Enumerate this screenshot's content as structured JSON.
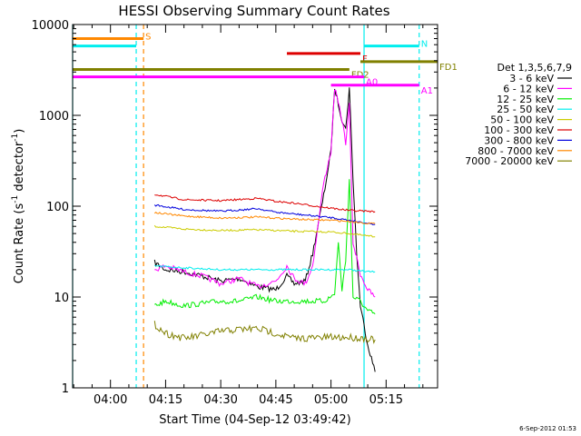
{
  "chart_data": {
    "type": "line",
    "title": "HESSI Observing Summary Count Rates",
    "xlabel": "Start Time (04-Sep-12 03:49:42)",
    "ylabel": "Count Rate (s⁻¹ detector⁻¹)",
    "ylabel_main": "Count Rate (s",
    "ylabel_mid": " detector",
    "ylabel_end": ")",
    "ylabel_sup": "-1",
    "yscale": "log",
    "ylim": [
      1,
      10000
    ],
    "xlim": [
      "03:49:42",
      "05:29:00"
    ],
    "x_tick_labels": [
      "04:00",
      "04:15",
      "04:30",
      "04:45",
      "05:00",
      "05:15"
    ],
    "y_tick_labels": [
      "1",
      "10",
      "100",
      "1000",
      "10000"
    ],
    "legend_title": "Det 1,3,5,6,7,9",
    "legend_position": "right",
    "series": [
      {
        "name": "3 - 6 keV",
        "color": "#000000",
        "points": [
          [
            "04:12",
            24
          ],
          [
            "04:15",
            20
          ],
          [
            "04:20",
            19
          ],
          [
            "04:25",
            17
          ],
          [
            "04:30",
            15
          ],
          [
            "04:35",
            16
          ],
          [
            "04:40",
            13
          ],
          [
            "04:45",
            12
          ],
          [
            "04:48",
            17
          ],
          [
            "04:50",
            14
          ],
          [
            "04:53",
            15
          ],
          [
            "04:55",
            30
          ],
          [
            "04:58",
            130
          ],
          [
            "05:00",
            400
          ],
          [
            "05:01",
            2000
          ],
          [
            "05:03",
            900
          ],
          [
            "05:04",
            700
          ],
          [
            "05:05",
            2000
          ],
          [
            "05:06",
            200
          ],
          [
            "05:07",
            30
          ],
          [
            "05:08",
            8
          ],
          [
            "05:10",
            3
          ],
          [
            "05:12",
            1.5
          ]
        ]
      },
      {
        "name": "6 - 12 keV",
        "color": "#ff00ff",
        "points": [
          [
            "04:12",
            20
          ],
          [
            "04:15",
            22
          ],
          [
            "04:20",
            19
          ],
          [
            "04:25",
            17
          ],
          [
            "04:30",
            14
          ],
          [
            "04:35",
            16
          ],
          [
            "04:40",
            13
          ],
          [
            "04:45",
            15
          ],
          [
            "04:48",
            22
          ],
          [
            "04:50",
            16
          ],
          [
            "04:53",
            14
          ],
          [
            "04:55",
            22
          ],
          [
            "04:58",
            180
          ],
          [
            "05:00",
            400
          ],
          [
            "05:01",
            2000
          ],
          [
            "05:03",
            900
          ],
          [
            "05:04",
            500
          ],
          [
            "05:05",
            1300
          ],
          [
            "05:06",
            40
          ],
          [
            "05:08",
            18
          ],
          [
            "05:10",
            12
          ],
          [
            "05:12",
            10
          ]
        ]
      },
      {
        "name": "12 - 25 keV",
        "color": "#00ee00",
        "points": [
          [
            "04:12",
            8
          ],
          [
            "04:15",
            9
          ],
          [
            "04:20",
            8
          ],
          [
            "04:25",
            8.5
          ],
          [
            "04:30",
            9
          ],
          [
            "04:35",
            9
          ],
          [
            "04:40",
            10
          ],
          [
            "04:45",
            9
          ],
          [
            "04:50",
            9
          ],
          [
            "04:55",
            9
          ],
          [
            "04:58",
            9
          ],
          [
            "05:00",
            10
          ],
          [
            "05:01",
            11
          ],
          [
            "05:02",
            40
          ],
          [
            "05:03",
            12
          ],
          [
            "05:04",
            25
          ],
          [
            "05:05",
            200
          ],
          [
            "05:06",
            10
          ],
          [
            "05:08",
            9
          ],
          [
            "05:10",
            7
          ],
          [
            "05:12",
            6.5
          ]
        ]
      },
      {
        "name": "25 - 50 keV",
        "color": "#00eeee",
        "points": [
          [
            "04:12",
            22
          ],
          [
            "04:20",
            21
          ],
          [
            "04:30",
            20
          ],
          [
            "04:40",
            20
          ],
          [
            "04:50",
            20
          ],
          [
            "05:00",
            20
          ],
          [
            "05:05",
            20
          ],
          [
            "05:10",
            19
          ],
          [
            "05:12",
            19
          ]
        ]
      },
      {
        "name": "50 - 100 keV",
        "color": "#cccc00",
        "points": [
          [
            "04:12",
            60
          ],
          [
            "04:20",
            56
          ],
          [
            "04:30",
            54
          ],
          [
            "04:40",
            55
          ],
          [
            "04:50",
            53
          ],
          [
            "05:00",
            52
          ],
          [
            "05:05",
            50
          ],
          [
            "05:10",
            47
          ],
          [
            "05:12",
            46
          ]
        ]
      },
      {
        "name": "100 - 300 keV",
        "color": "#dd0000",
        "points": [
          [
            "04:12",
            135
          ],
          [
            "04:20",
            118
          ],
          [
            "04:30",
            115
          ],
          [
            "04:40",
            122
          ],
          [
            "04:45",
            113
          ],
          [
            "04:50",
            108
          ],
          [
            "05:00",
            95
          ],
          [
            "05:05",
            90
          ],
          [
            "05:10",
            88
          ],
          [
            "05:12",
            87
          ]
        ]
      },
      {
        "name": "300 - 800 keV",
        "color": "#0000dd",
        "points": [
          [
            "04:12",
            103
          ],
          [
            "04:20",
            92
          ],
          [
            "04:30",
            88
          ],
          [
            "04:40",
            94
          ],
          [
            "04:45",
            86
          ],
          [
            "04:50",
            82
          ],
          [
            "05:00",
            75
          ],
          [
            "05:05",
            70
          ],
          [
            "05:10",
            65
          ],
          [
            "05:12",
            63
          ]
        ]
      },
      {
        "name": "800 - 7000 keV",
        "color": "#ff8800",
        "points": [
          [
            "04:12",
            85
          ],
          [
            "04:20",
            78
          ],
          [
            "04:30",
            74
          ],
          [
            "04:40",
            76
          ],
          [
            "04:50",
            72
          ],
          [
            "05:00",
            70
          ],
          [
            "05:05",
            68
          ],
          [
            "05:10",
            65
          ],
          [
            "05:12",
            64
          ]
        ]
      },
      {
        "name": "7000 - 20000 keV",
        "color": "#808000",
        "points": [
          [
            "04:12",
            5
          ],
          [
            "04:15",
            4
          ],
          [
            "04:20",
            3.5
          ],
          [
            "04:25",
            3.8
          ],
          [
            "04:30",
            4.2
          ],
          [
            "04:35",
            4.4
          ],
          [
            "04:40",
            4.5
          ],
          [
            "04:45",
            4
          ],
          [
            "04:50",
            3.5
          ],
          [
            "05:00",
            3.6
          ],
          [
            "05:05",
            3.6
          ],
          [
            "05:10",
            3.5
          ],
          [
            "05:12",
            3.4
          ]
        ]
      }
    ],
    "annotations": [
      {
        "text": "S",
        "color": "#ff8800"
      },
      {
        "text": "N",
        "color": "#00eeee"
      },
      {
        "text": "F",
        "color": "#dd0000"
      },
      {
        "text": "FD1",
        "color": "#808000"
      },
      {
        "text": "FD2",
        "color": "#808000"
      },
      {
        "text": "A0",
        "color": "#ff00ff"
      },
      {
        "text": "A1",
        "color": "#ff00ff"
      }
    ],
    "flag_bars": [
      {
        "label": "S",
        "color": "#ff8800",
        "value": 7000,
        "segments": [
          [
            "03:49:42",
            "04:09"
          ]
        ]
      },
      {
        "label": "N",
        "color": "#00eeee",
        "value": 5800,
        "segments": [
          [
            "03:49:42",
            "04:07"
          ],
          [
            "05:09",
            "05:24"
          ]
        ]
      },
      {
        "label": "F",
        "color": "#dd0000",
        "value": 4800,
        "segments": [
          [
            "04:48",
            "05:08"
          ]
        ]
      },
      {
        "label": "FD1",
        "color": "#808000",
        "value": 3900,
        "segments": [
          [
            "05:08",
            "05:29"
          ]
        ]
      },
      {
        "label": "FD2",
        "color": "#808000",
        "value": 3200,
        "segments": [
          [
            "03:49:42",
            "05:05"
          ]
        ]
      },
      {
        "label": "A0",
        "color": "#ff00ff",
        "value": 2650,
        "segments": [
          [
            "03:49:42",
            "05:09"
          ]
        ]
      },
      {
        "label": "A1",
        "color": "#ff00ff",
        "value": 2150,
        "segments": [
          [
            "05:00",
            "05:24"
          ]
        ]
      }
    ],
    "vertical_markers": [
      {
        "time": "03:49:42",
        "color": "#00eeee",
        "style": "solid"
      },
      {
        "time": "04:07",
        "color": "#00eeee",
        "style": "dashed"
      },
      {
        "time": "04:09",
        "color": "#ff8800",
        "style": "dashed"
      },
      {
        "time": "05:09",
        "color": "#00eeee",
        "style": "solid"
      },
      {
        "time": "05:24",
        "color": "#00eeee",
        "style": "dashed"
      }
    ]
  },
  "footer": {
    "timestamp": "6-Sep-2012 01:53"
  }
}
